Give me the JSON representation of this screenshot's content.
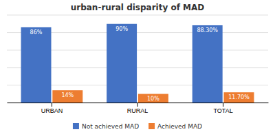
{
  "chart_data": {
    "type": "bar",
    "title": "urban-rural disparity of MAD",
    "categories": [
      "URBAN",
      "RURAL",
      "TOTAL"
    ],
    "series": [
      {
        "name": "Not achieved MAD",
        "color": "#4472C4",
        "values": [
          86,
          90,
          88.3
        ],
        "value_labels": [
          "86%",
          "90%",
          "88.30%"
        ]
      },
      {
        "name": "Achieved MAD",
        "color": "#ED7D31",
        "values": [
          14,
          10,
          11.7
        ],
        "value_labels": [
          "14%",
          "10%",
          "11.70%"
        ]
      }
    ],
    "ylim": [
      0,
      100
    ],
    "yticks": [
      0,
      20,
      40,
      60,
      80,
      100
    ],
    "grid": true,
    "data_labels": true,
    "tick_labels": "x",
    "legend": "bottom"
  }
}
